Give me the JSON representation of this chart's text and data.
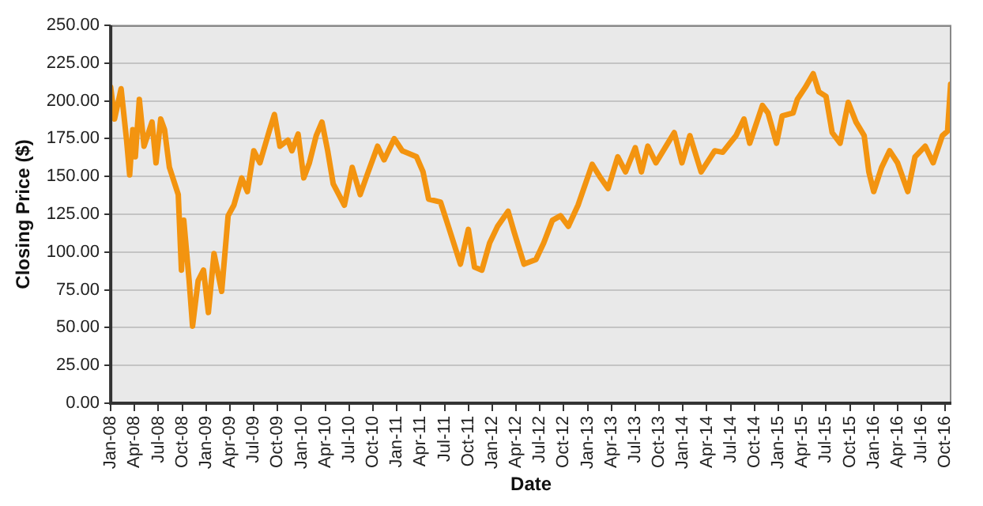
{
  "chart_data": {
    "type": "line",
    "xlabel": "Date",
    "ylabel": "Closing Price ($)",
    "xlim": [
      "2008-01-01",
      "2016-10-25"
    ],
    "xticks": [
      {
        "value": "2008-01",
        "label": "Jan-08"
      },
      {
        "value": "2008-04",
        "label": "Apr-08"
      },
      {
        "value": "2008-07",
        "label": "Jul-08"
      },
      {
        "value": "2008-10",
        "label": "Oct-08"
      },
      {
        "value": "2009-01",
        "label": "Jan-09"
      },
      {
        "value": "2009-04",
        "label": "Apr-09"
      },
      {
        "value": "2009-07",
        "label": "Jul-09"
      },
      {
        "value": "2009-10",
        "label": "Oct-09"
      },
      {
        "value": "2010-01",
        "label": "Jan-10"
      },
      {
        "value": "2010-04",
        "label": "Apr-10"
      },
      {
        "value": "2010-07",
        "label": "Jul-10"
      },
      {
        "value": "2010-10",
        "label": "Oct-10"
      },
      {
        "value": "2011-01",
        "label": "Jan-11"
      },
      {
        "value": "2011-04",
        "label": "Apr-11"
      },
      {
        "value": "2011-07",
        "label": "Jul-11"
      },
      {
        "value": "2011-10",
        "label": "Oct-11"
      },
      {
        "value": "2012-01",
        "label": "Jan-12"
      },
      {
        "value": "2012-04",
        "label": "Apr-12"
      },
      {
        "value": "2012-07",
        "label": "Jul-12"
      },
      {
        "value": "2012-10",
        "label": "Oct-12"
      },
      {
        "value": "2013-01",
        "label": "Jan-13"
      },
      {
        "value": "2013-04",
        "label": "Apr-13"
      },
      {
        "value": "2013-07",
        "label": "Jul-13"
      },
      {
        "value": "2013-10",
        "label": "Oct-13"
      },
      {
        "value": "2014-01",
        "label": "Jan-14"
      },
      {
        "value": "2014-04",
        "label": "Apr-14"
      },
      {
        "value": "2014-07",
        "label": "Jul-14"
      },
      {
        "value": "2014-10",
        "label": "Oct-14"
      },
      {
        "value": "2015-01",
        "label": "Jan-15"
      },
      {
        "value": "2015-04",
        "label": "Apr-15"
      },
      {
        "value": "2015-07",
        "label": "Jul-15"
      },
      {
        "value": "2015-10",
        "label": "Oct-15"
      },
      {
        "value": "2016-01",
        "label": "Jan-16"
      },
      {
        "value": "2016-04",
        "label": "Apr-16"
      },
      {
        "value": "2016-07",
        "label": "Jul-16"
      },
      {
        "value": "2016-10",
        "label": "Oct-16"
      }
    ],
    "ylim": [
      0,
      250
    ],
    "yticks": [
      {
        "value": 0,
        "label": "0.00"
      },
      {
        "value": 25,
        "label": "25.00"
      },
      {
        "value": 50,
        "label": "50.00"
      },
      {
        "value": 75,
        "label": "75.00"
      },
      {
        "value": 100,
        "label": "100.00"
      },
      {
        "value": 125,
        "label": "125.00"
      },
      {
        "value": 150,
        "label": "150.00"
      },
      {
        "value": 175,
        "label": "175.00"
      },
      {
        "value": 200,
        "label": "200.00"
      },
      {
        "value": 225,
        "label": "225.00"
      },
      {
        "value": 250,
        "label": "250.00"
      }
    ],
    "grid": "y",
    "legend": false,
    "marker": "none",
    "line_style": "solid",
    "x": [
      "2008-01-01",
      "2008-01-16",
      "2008-02-10",
      "2008-03-01",
      "2008-03-13",
      "2008-03-25",
      "2008-04-04",
      "2008-04-19",
      "2008-05-07",
      "2008-06-07",
      "2008-06-22",
      "2008-07-10",
      "2008-07-25",
      "2008-08-13",
      "2008-09-16",
      "2008-09-28",
      "2008-10-07",
      "2008-10-28",
      "2008-11-10",
      "2008-12-01",
      "2008-12-22",
      "2009-01-10",
      "2009-02-01",
      "2009-02-28",
      "2009-03-25",
      "2009-04-16",
      "2009-05-16",
      "2009-06-07",
      "2009-07-01",
      "2009-07-25",
      "2009-09-01",
      "2009-09-19",
      "2009-10-10",
      "2009-11-10",
      "2009-11-25",
      "2009-12-19",
      "2010-01-10",
      "2010-02-01",
      "2010-02-25",
      "2010-03-19",
      "2010-04-10",
      "2010-05-01",
      "2010-06-13",
      "2010-07-13",
      "2010-08-13",
      "2010-09-13",
      "2010-10-19",
      "2010-11-13",
      "2010-12-22",
      "2011-01-22",
      "2011-03-16",
      "2011-04-10",
      "2011-05-01",
      "2011-06-16",
      "2011-07-16",
      "2011-09-01",
      "2011-10-01",
      "2011-10-25",
      "2011-11-22",
      "2011-12-22",
      "2012-01-22",
      "2012-03-01",
      "2012-03-25",
      "2012-05-01",
      "2012-06-16",
      "2012-07-16",
      "2012-08-19",
      "2012-09-19",
      "2012-10-19",
      "2012-11-25",
      "2013-01-19",
      "2013-02-19",
      "2013-03-19",
      "2013-04-25",
      "2013-05-25",
      "2013-07-01",
      "2013-07-25",
      "2013-08-19",
      "2013-09-19",
      "2013-10-28",
      "2013-11-28",
      "2013-12-28",
      "2014-01-28",
      "2014-03-10",
      "2014-05-01",
      "2014-06-01",
      "2014-07-22",
      "2014-08-22",
      "2014-09-13",
      "2014-11-01",
      "2014-11-22",
      "2014-12-25",
      "2015-01-16",
      "2015-02-25",
      "2015-03-13",
      "2015-04-13",
      "2015-05-13",
      "2015-06-04",
      "2015-07-01",
      "2015-07-25",
      "2015-08-25",
      "2015-09-25",
      "2015-10-25",
      "2015-11-25",
      "2015-12-13",
      "2016-01-01",
      "2016-02-01",
      "2016-03-01",
      "2016-04-01",
      "2016-05-10",
      "2016-06-07",
      "2016-07-16",
      "2016-08-16",
      "2016-09-20",
      "2016-10-10",
      "2016-10-22"
    ],
    "series": [
      {
        "color": "#f39410",
        "values": [
          209,
          188,
          208,
          174,
          151,
          181,
          163,
          201,
          170,
          186,
          159,
          188,
          181,
          156,
          138,
          88,
          121,
          81,
          51,
          81,
          88,
          60,
          99,
          74,
          124,
          131,
          149,
          140,
          167,
          159,
          181,
          191,
          170,
          174,
          167,
          178,
          149,
          159,
          177,
          186,
          167,
          145,
          131,
          156,
          138,
          153,
          170,
          161,
          175,
          167,
          163,
          153,
          135,
          133,
          117,
          92,
          115,
          90,
          88,
          106,
          117,
          127,
          113,
          92,
          95,
          106,
          121,
          124,
          117,
          131,
          158,
          149,
          142,
          163,
          153,
          169,
          153,
          170,
          159,
          170,
          179,
          159,
          177,
          153,
          167,
          166,
          177,
          188,
          172,
          197,
          192,
          172,
          190,
          192,
          201,
          209,
          218,
          206,
          203,
          179,
          172,
          199,
          186,
          177,
          153,
          140,
          156,
          167,
          159,
          140,
          163,
          170,
          159,
          177,
          180,
          211
        ]
      }
    ]
  }
}
